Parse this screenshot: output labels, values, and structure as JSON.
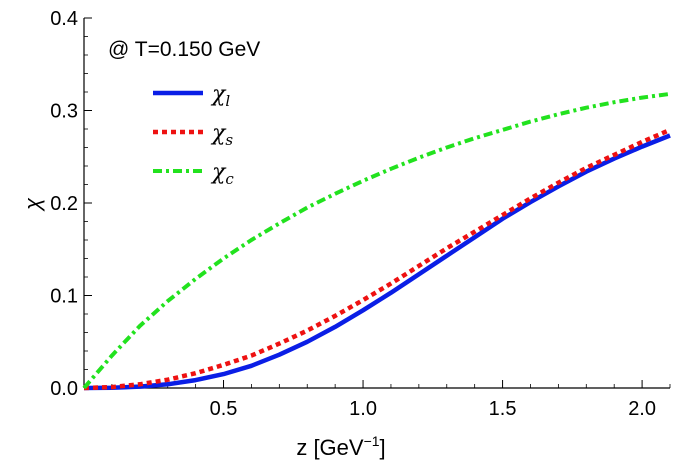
{
  "chart_data": {
    "type": "line",
    "title": "",
    "annotation": "@ T=0.150 GeV",
    "xlabel": {
      "base": "z [GeV",
      "sup": "−1",
      "tail": "]"
    },
    "ylabel": "χ",
    "xlim": [
      0,
      2.1
    ],
    "ylim": [
      0,
      0.4
    ],
    "xticks": [
      0.5,
      1.0,
      1.5,
      2.0
    ],
    "xtick_labels": [
      "0.5",
      "1.0",
      "1.5",
      "2.0"
    ],
    "yticks": [
      0.0,
      0.1,
      0.2,
      0.3,
      0.4
    ],
    "ytick_labels": [
      "0.0",
      "0.1",
      "0.2",
      "0.3",
      "0.4"
    ],
    "grid": false,
    "legend_position": "top-left",
    "series": [
      {
        "name": "χl",
        "label_main": "χ",
        "label_sub": "l",
        "color": "#0a1ee6",
        "style": "solid",
        "x": [
          0.0,
          0.1,
          0.2,
          0.3,
          0.4,
          0.5,
          0.6,
          0.7,
          0.8,
          0.9,
          1.0,
          1.1,
          1.2,
          1.3,
          1.4,
          1.5,
          1.6,
          1.7,
          1.8,
          1.9,
          2.0,
          2.1
        ],
        "y": [
          0.0,
          0.0003,
          0.0015,
          0.004,
          0.0085,
          0.015,
          0.024,
          0.036,
          0.05,
          0.066,
          0.084,
          0.103,
          0.123,
          0.143,
          0.163,
          0.183,
          0.201,
          0.218,
          0.234,
          0.248,
          0.261,
          0.273
        ]
      },
      {
        "name": "χs",
        "label_main": "χ",
        "label_sub": "s",
        "color": "#ee1111",
        "style": "dotted",
        "x": [
          0.0,
          0.1,
          0.2,
          0.3,
          0.4,
          0.5,
          0.6,
          0.7,
          0.8,
          0.9,
          1.0,
          1.1,
          1.2,
          1.3,
          1.4,
          1.5,
          1.6,
          1.7,
          1.8,
          1.9,
          2.0,
          2.1
        ],
        "y": [
          0.0,
          0.001,
          0.004,
          0.009,
          0.016,
          0.025,
          0.035,
          0.048,
          0.062,
          0.078,
          0.095,
          0.113,
          0.132,
          0.151,
          0.169,
          0.187,
          0.205,
          0.222,
          0.238,
          0.252,
          0.266,
          0.279
        ]
      },
      {
        "name": "χc",
        "label_main": "χ",
        "label_sub": "c",
        "color": "#22e21e",
        "style": "dashdot",
        "x": [
          0.0,
          0.1,
          0.2,
          0.3,
          0.4,
          0.5,
          0.6,
          0.7,
          0.8,
          0.9,
          1.0,
          1.1,
          1.2,
          1.3,
          1.4,
          1.5,
          1.6,
          1.7,
          1.8,
          1.9,
          2.0,
          2.1
        ],
        "y": [
          0.0,
          0.035,
          0.067,
          0.094,
          0.118,
          0.14,
          0.16,
          0.178,
          0.195,
          0.21,
          0.224,
          0.237,
          0.249,
          0.26,
          0.27,
          0.279,
          0.288,
          0.296,
          0.303,
          0.309,
          0.314,
          0.318
        ]
      }
    ]
  }
}
